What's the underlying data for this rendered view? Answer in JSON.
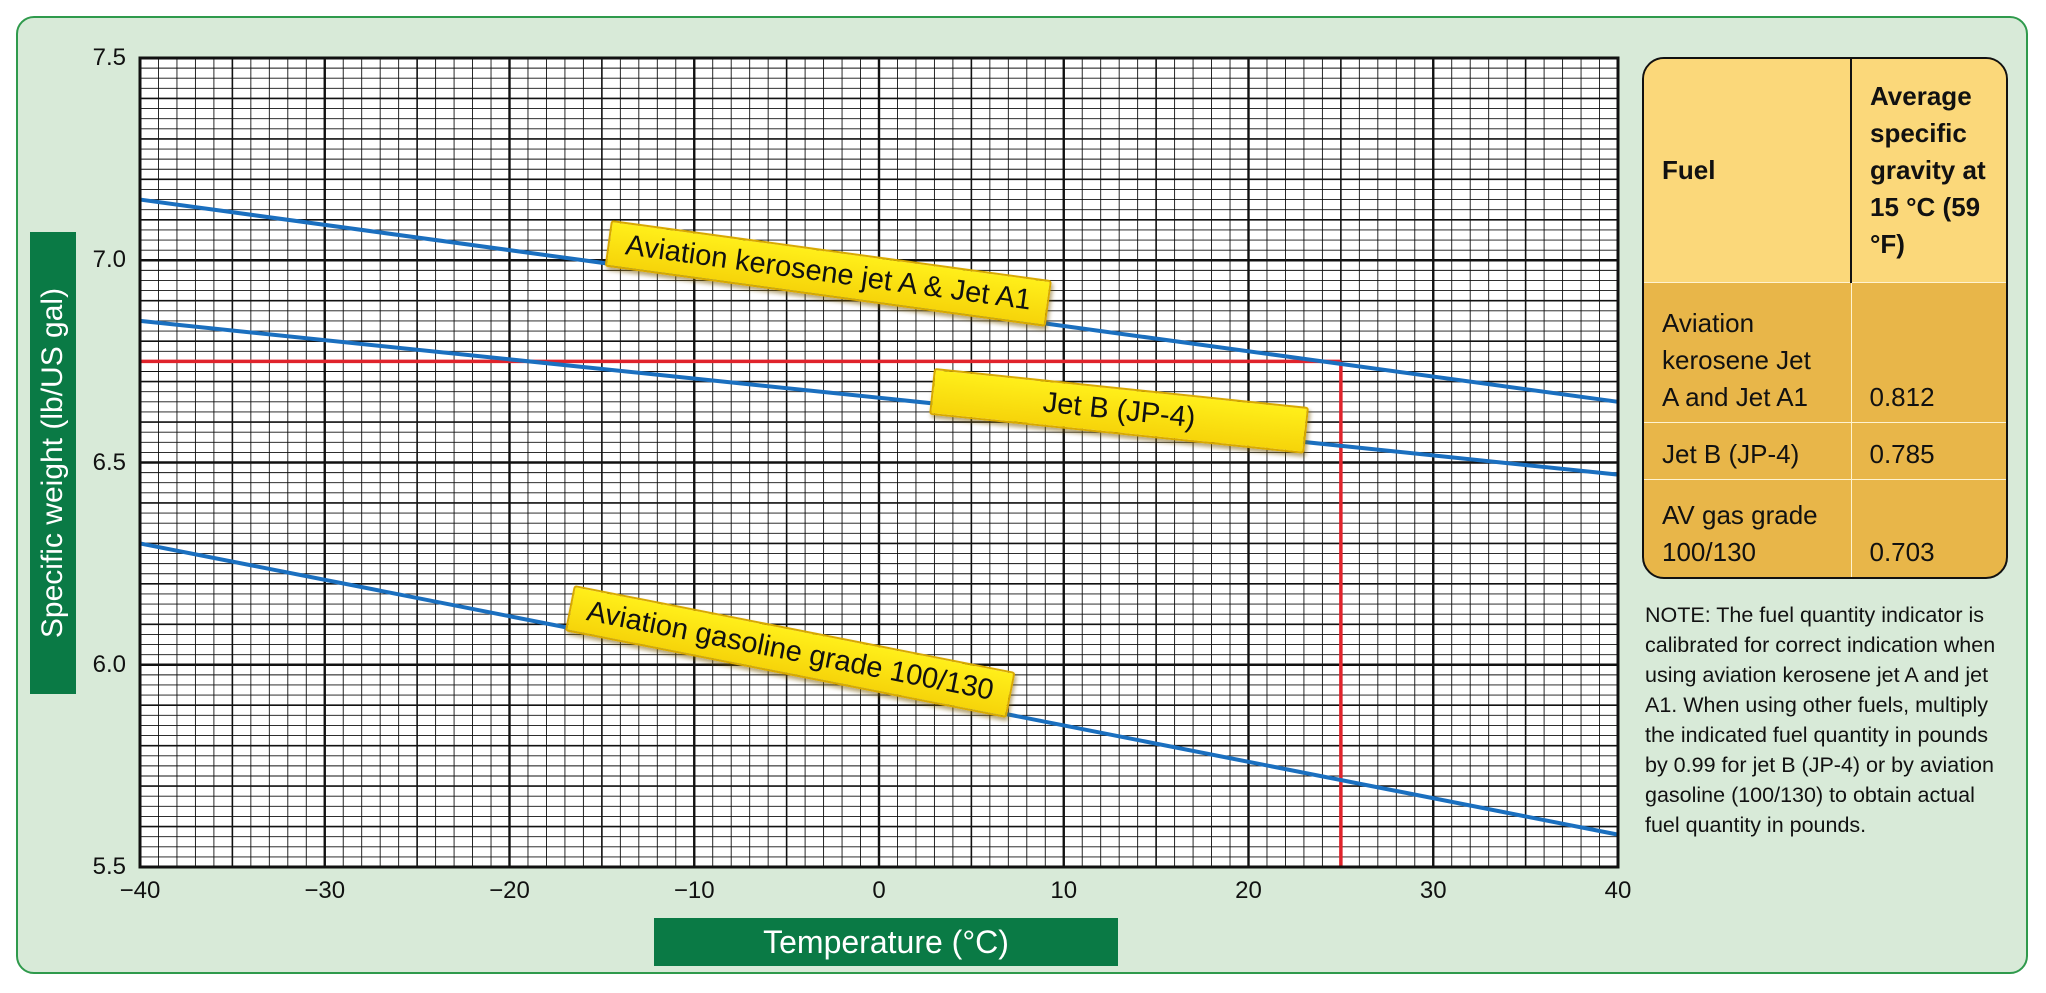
{
  "chart_data": {
    "type": "line",
    "xlabel": "Temperature (°C)",
    "ylabel": "Specific weight (lb/US gal)",
    "xlim": [
      -40,
      40
    ],
    "ylim": [
      5.5,
      7.5
    ],
    "x_ticks": [
      "−40",
      "−30",
      "−20",
      "−10",
      "0",
      "10",
      "20",
      "30",
      "40"
    ],
    "y_ticks": [
      "7.5",
      "7.0",
      "6.5",
      "6.0",
      "5.5"
    ],
    "grid": true,
    "series": [
      {
        "name": "Aviation kerosene jet A & Jet A1",
        "x": [
          -40,
          40
        ],
        "y": [
          7.15,
          6.65
        ]
      },
      {
        "name": "Jet B (JP-4)",
        "x": [
          -40,
          40
        ],
        "y": [
          6.85,
          6.47
        ]
      },
      {
        "name": "Aviation gasoline grade 100/130",
        "x": [
          -40,
          40
        ],
        "y": [
          6.3,
          5.58
        ]
      }
    ],
    "guide_lines": {
      "x": 25,
      "y": 6.75
    },
    "colors": {
      "series": "#1a6fbf",
      "guide": "#e0232b",
      "grid": "#111111",
      "background": "#ffffff"
    }
  },
  "fuel_table": {
    "headers": [
      "Fuel",
      "Average specific gravity at 15 °C (59 °F)"
    ],
    "rows": [
      {
        "fuel": "Aviation kerosene Jet A and Jet A1",
        "gravity": "0.812"
      },
      {
        "fuel": "Jet B (JP-4)",
        "gravity": "0.785"
      },
      {
        "fuel": "AV gas grade 100/130",
        "gravity": "0.703"
      }
    ]
  },
  "note": "NOTE: The fuel quantity indicator is calibrated for correct indication when using aviation kerosene jet A and jet A1. When using other fuels, multiply the indicated fuel quantity in pounds by 0.99 for jet B (JP-4) or by aviation gasoline (100/130) to obtain actual fuel quantity in pounds.",
  "colors": {
    "frame_bg": "#d8ead8",
    "frame_border": "#2f9a4c",
    "label_box": "#0a7a45",
    "table_header": "#fbd87a",
    "table_body": "#e8b649",
    "series_label_bg": "#ffee1a"
  }
}
